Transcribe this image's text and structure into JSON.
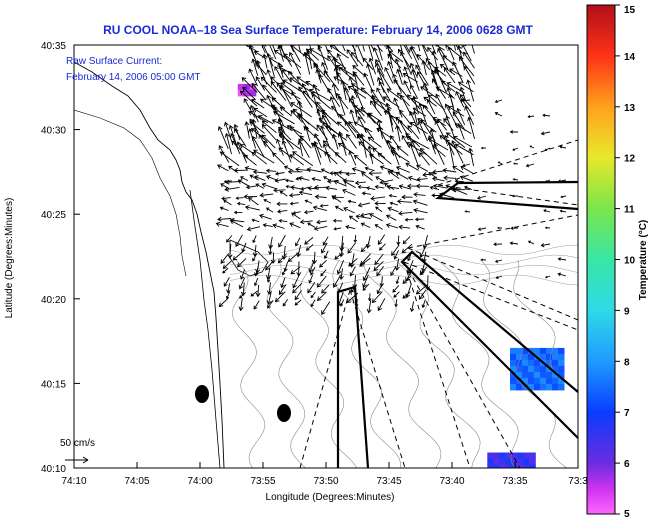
{
  "chart_data": {
    "type": "map-quiver",
    "title": "RU COOL  NOAA–18  Sea Surface Temperature:  February 14, 2006 0628 GMT",
    "inset_label_1": "Raw Surface Current:",
    "inset_label_2": "February 14, 2006 05:00 GMT",
    "scale_label": "50 cm/s",
    "xlabel": "Longitude (Degrees:Minutes)",
    "ylabel": "Latitude (Degrees:Minutes)",
    "x_ticks": [
      "74:10",
      "74:05",
      "74:00",
      "73:55",
      "73:50",
      "73:45",
      "73:40",
      "73:35",
      "73:3"
    ],
    "y_ticks": [
      "40:35",
      "40:30",
      "40:25",
      "40:20",
      "40:15",
      "40:10"
    ],
    "xlim": [
      -74.1667,
      -73.5
    ],
    "ylim": [
      40.1667,
      40.5833
    ],
    "colorbar": {
      "label": "Temperature (°C)",
      "min": 5,
      "max": 15,
      "ticks": [
        "15",
        "14",
        "13",
        "12",
        "11",
        "10",
        "9",
        "8",
        "7",
        "6",
        "5"
      ]
    },
    "sst_patches": [
      {
        "temp": 5.5,
        "lon_min": -73.95,
        "lon_max": -73.93,
        "lat_min": 40.535,
        "lat_max": 40.545
      },
      {
        "temp": 7.5,
        "lon_min": -73.59,
        "lon_max": -73.52,
        "lat_min": 40.245,
        "lat_max": 40.285
      },
      {
        "temp": 6.5,
        "lon_min": -73.62,
        "lon_max": -73.56,
        "lat_min": 40.168,
        "lat_max": 40.182
      }
    ]
  }
}
